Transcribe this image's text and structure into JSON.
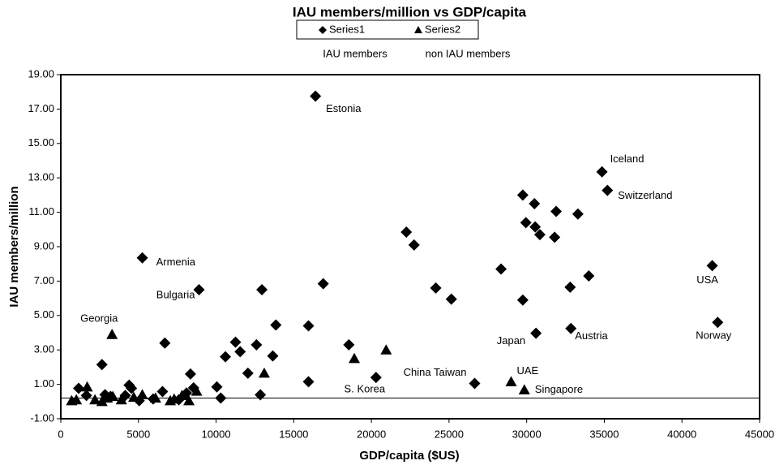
{
  "chart_data": {
    "type": "scatter",
    "title": "IAU members/million vs GDP/capita",
    "x_label": "GDP/capita ($US)",
    "y_label": "IAU members/million",
    "legend_notes": [
      "IAU members",
      "non IAU members"
    ],
    "xlim": [
      0,
      45000
    ],
    "xticks": [
      0,
      5000,
      10000,
      15000,
      20000,
      25000,
      30000,
      35000,
      40000,
      45000
    ],
    "ylim": [
      -1,
      19
    ],
    "yticks": [
      {
        "value": -1,
        "label": "-1.00"
      },
      {
        "value": 1,
        "label": "1.00"
      },
      {
        "value": 3,
        "label": "3.00"
      },
      {
        "value": 5,
        "label": "5.00"
      },
      {
        "value": 7,
        "label": "7.00"
      },
      {
        "value": 9,
        "label": "9.00"
      },
      {
        "value": 11,
        "label": "11.00"
      },
      {
        "value": 13,
        "label": "13.00"
      },
      {
        "value": 15,
        "label": "15.00"
      },
      {
        "value": 17,
        "label": "17.00"
      },
      {
        "value": 19,
        "label": "19.00"
      }
    ],
    "hline": 0.2,
    "series": [
      {
        "name": "Series1",
        "marker": "diamond",
        "color": "#000000",
        "x": [
          16400,
          34850,
          35200,
          29750,
          30500,
          31900,
          33300,
          29950,
          30550,
          30850,
          31800,
          22250,
          22750,
          5250,
          41950,
          28350,
          34000,
          16900,
          12950,
          8900,
          24150,
          32800,
          25150,
          29750,
          42300,
          13850,
          15950,
          30600,
          32850,
          6700,
          11250,
          12600,
          11550,
          18550,
          13650,
          10600,
          2650,
          12050,
          8350,
          15950,
          20300,
          26650,
          8550,
          10050,
          1150,
          4550,
          6550,
          12850,
          10300,
          7600,
          5950,
          5050,
          4150,
          2850,
          1650,
          3200,
          8100,
          4400
        ],
        "values": [
          17.75,
          13.35,
          12.27,
          12.0,
          11.5,
          11.05,
          10.9,
          10.4,
          10.15,
          9.7,
          9.55,
          9.85,
          9.1,
          8.35,
          7.9,
          7.7,
          7.3,
          6.85,
          6.5,
          6.5,
          6.6,
          6.65,
          5.95,
          5.9,
          4.6,
          4.45,
          4.4,
          3.97,
          4.25,
          3.4,
          3.45,
          3.3,
          2.9,
          3.3,
          2.65,
          2.6,
          2.15,
          1.65,
          1.6,
          1.15,
          1.4,
          1.05,
          0.8,
          0.85,
          0.77,
          0.77,
          0.58,
          0.39,
          0.2,
          0.1,
          0.15,
          0.05,
          0.35,
          0.4,
          0.35,
          0.3,
          0.5,
          0.95
        ],
        "labels": [
          "Estonia",
          "Iceland",
          "Switzerland",
          null,
          null,
          null,
          null,
          null,
          null,
          null,
          null,
          null,
          null,
          "Armenia",
          "USA",
          null,
          null,
          null,
          null,
          "Bulgaria",
          null,
          null,
          null,
          null,
          "Norway",
          null,
          null,
          "Japan",
          "Austria",
          null,
          null,
          null,
          null,
          null,
          null,
          null,
          null,
          null,
          null,
          null,
          "S. Korea",
          "China Taiwan",
          null,
          null,
          null,
          null,
          null,
          null,
          null,
          null,
          null,
          null,
          null,
          null,
          null,
          null,
          null,
          null
        ]
      },
      {
        "name": "Series2",
        "marker": "triangle",
        "color": "#000000",
        "x": [
          3300,
          20950,
          18900,
          13100,
          29000,
          29850,
          1700,
          700,
          2200,
          2650,
          3000,
          3350,
          3900,
          4700,
          5250,
          6100,
          7050,
          7800,
          8250,
          8750,
          1000,
          7300
        ],
        "values": [
          3.9,
          3.0,
          2.5,
          1.65,
          1.15,
          0.68,
          0.85,
          0.05,
          0.1,
          0.0,
          0.2,
          0.3,
          0.1,
          0.25,
          0.4,
          0.2,
          0.05,
          0.35,
          0.05,
          0.6,
          0.1,
          0.15
        ],
        "labels": [
          "Georgia",
          null,
          null,
          null,
          "UAE",
          "Singapore",
          null,
          null,
          null,
          null,
          null,
          null,
          null,
          null,
          null,
          null,
          null,
          null,
          null,
          null,
          null,
          null
        ]
      }
    ]
  }
}
